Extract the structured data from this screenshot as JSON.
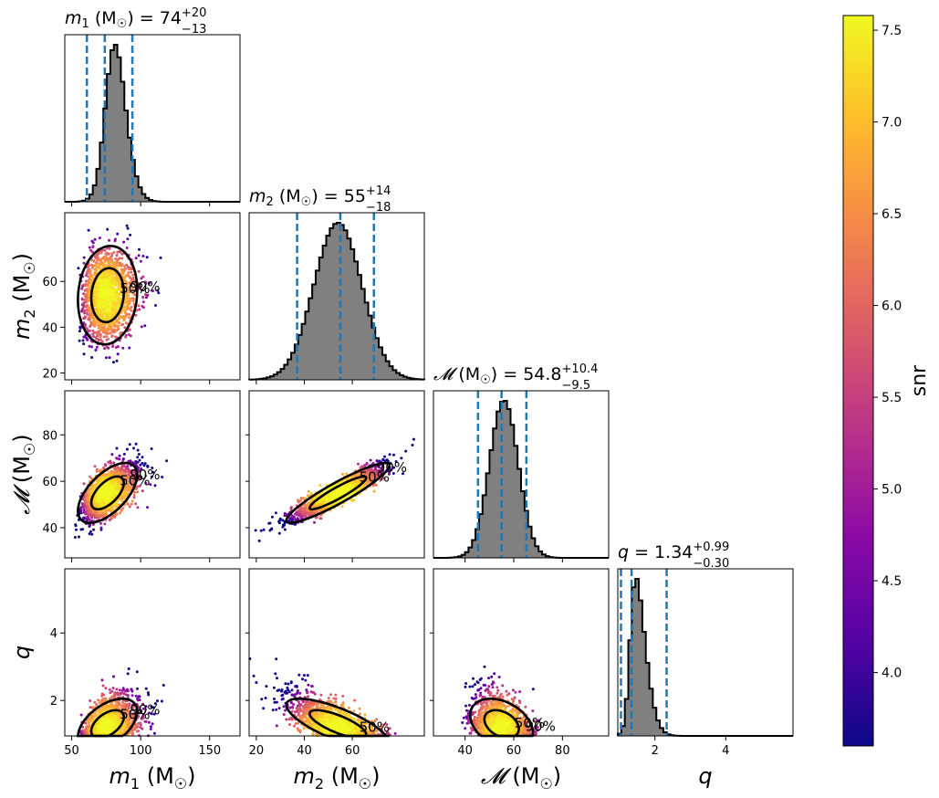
{
  "chart_data": {
    "type": "corner",
    "parameters": [
      {
        "key": "m1",
        "symbol": "m",
        "sub": "1",
        "unit": "M",
        "unit_sub": "☉",
        "axis_label": "m1 (M☉)",
        "range": [
          45,
          172
        ],
        "ticks": [
          50,
          100,
          150
        ],
        "title_value": "74",
        "title_plus": "+20",
        "title_minus": "−13",
        "median": 74,
        "lo": 61,
        "hi": 94,
        "hist_mean": 76,
        "hist_sd": 10,
        "hist_skew": 1.4
      },
      {
        "key": "m2",
        "symbol": "m",
        "sub": "2",
        "unit": "M",
        "unit_sub": "☉",
        "axis_label": "m2 (M☉)",
        "range": [
          17,
          90
        ],
        "ticks": [
          20,
          40,
          60
        ],
        "title_value": "55",
        "title_plus": "+14",
        "title_minus": "−18",
        "median": 55,
        "lo": 37,
        "hi": 69,
        "hist_mean": 54,
        "hist_sd": 10,
        "hist_skew": 0
      },
      {
        "key": "chirp",
        "symbol": "𝓜",
        "sub": "",
        "unit": "M",
        "unit_sub": "☉",
        "axis_label": "𝓜 (M☉)",
        "range": [
          27,
          99
        ],
        "ticks": [
          40,
          60,
          80
        ],
        "title_value": "54.8",
        "title_plus": "+10.4",
        "title_minus": "−9.5",
        "median": 55,
        "lo": 45.3,
        "hi": 65.2,
        "hist_mean": 55,
        "hist_sd": 6,
        "hist_skew": 0.2
      },
      {
        "key": "q",
        "symbol": "q",
        "sub": "",
        "unit": "",
        "unit_sub": "",
        "axis_label": "q",
        "range": [
          0.95,
          5.9
        ],
        "ticks": [
          2,
          4
        ],
        "title_value": "1.34",
        "title_plus": "+0.99",
        "title_minus": "−0.30",
        "median": 1.34,
        "lo": 1.04,
        "hi": 2.33,
        "hist_mean": 1.3,
        "hist_sd": 0.35,
        "hist_skew": 3
      }
    ],
    "contour_labels": [
      "50%",
      "90%"
    ],
    "colorbar": {
      "label": "snr",
      "min": 3.6,
      "max": 7.58,
      "ticks": [
        4.0,
        4.5,
        5.0,
        5.5,
        6.0,
        6.5,
        7.0,
        7.5
      ],
      "colormap": [
        "#0d0887",
        "#5302a3",
        "#8b0aa5",
        "#b83289",
        "#db5c68",
        "#f48849",
        "#febd2a",
        "#f0f921"
      ]
    },
    "pair_correlations": {
      "1_0": 0.1,
      "2_0": 0.6,
      "2_1": 0.92,
      "3_0": 0.5,
      "3_1": -0.75,
      "3_2": -0.35
    }
  }
}
